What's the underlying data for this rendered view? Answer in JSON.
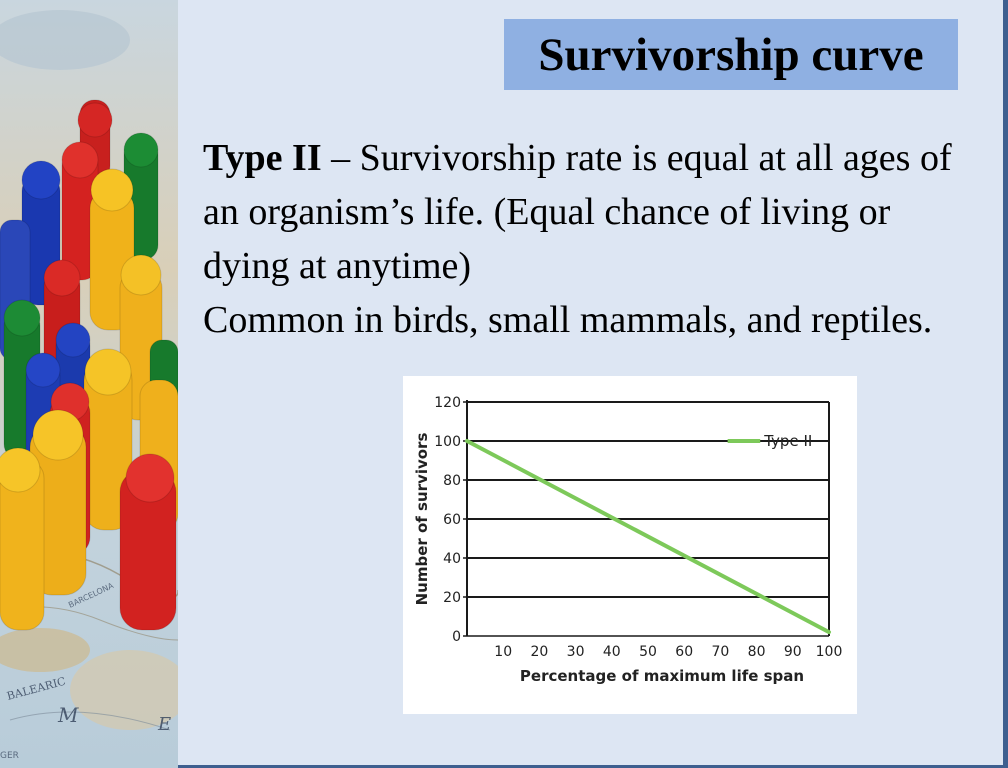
{
  "slide": {
    "title": "Survivorship curve",
    "lead_term": "Type II",
    "paragraph1_rest": " – Survivorship rate is equal at all ages of an organism’s life.  (Equal chance of living or dying at anytime)",
    "paragraph2": "Common in birds, small mammals, and reptiles."
  },
  "colors": {
    "background": "#dde6f3",
    "title_box": "#8fb0e2",
    "frame": "#3d5f8f",
    "series_line": "#7dc95a"
  },
  "chart_data": {
    "type": "line",
    "xlabel": "Percentage of maximum life span",
    "ylabel": "Number of survivors",
    "x_ticks": [
      10,
      20,
      30,
      40,
      50,
      60,
      70,
      80,
      90,
      100
    ],
    "y_ticks": [
      0,
      20,
      40,
      60,
      80,
      100,
      120
    ],
    "xlim": [
      0,
      100
    ],
    "ylim": [
      0,
      120
    ],
    "grid": "horizontal",
    "legend_position": "top-right",
    "series": [
      {
        "name": "Type II",
        "x": [
          0,
          100
        ],
        "y": [
          100,
          2
        ]
      }
    ]
  }
}
